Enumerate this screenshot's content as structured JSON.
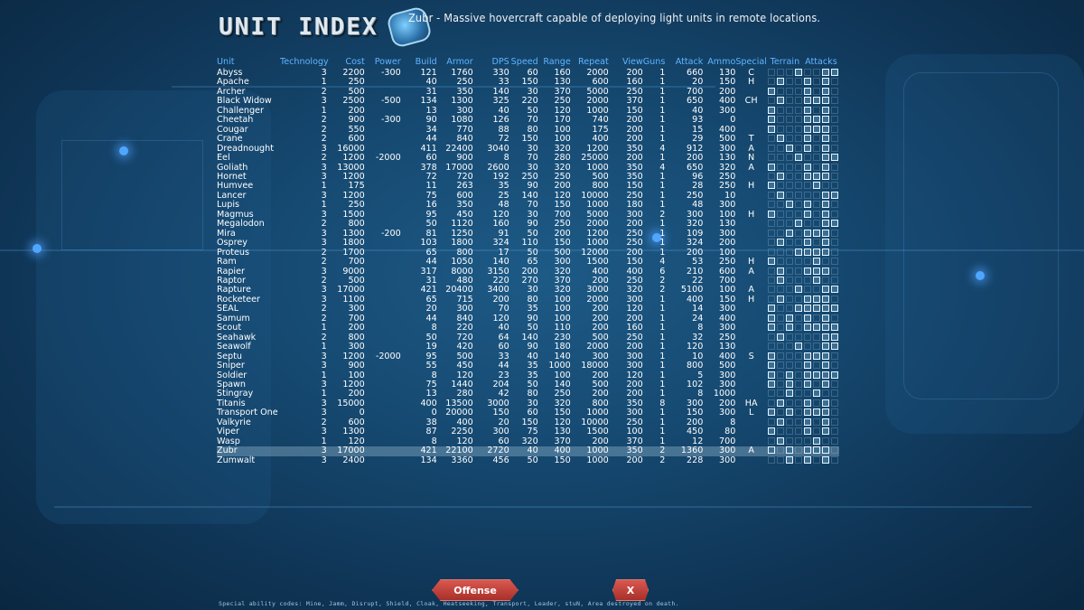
{
  "header": {
    "title": "UNIT INDEX",
    "description": "Zubr - Massive hovercraft capable of deploying light units in remote locations."
  },
  "columns": [
    "Unit",
    "Technology",
    "Cost",
    "Power",
    "Build",
    "Armor",
    "DPS",
    "Speed",
    "Range",
    "Repeat",
    "View",
    "Guns",
    "Attack",
    "Ammo",
    "Special",
    "Terrain",
    "Attacks"
  ],
  "selected_unit": "Zubr",
  "units": [
    {
      "name": "Abyss",
      "tech": "3",
      "cost": "2200",
      "power": "-300",
      "build": "121",
      "armor": "1760",
      "dps": "330",
      "speed": "60",
      "range": "160",
      "repeat": "2000",
      "view": "200",
      "guns": "1",
      "attack": "660",
      "ammo": "130",
      "special": "C",
      "icons": "00010011"
    },
    {
      "name": "Apache",
      "tech": "1",
      "cost": "250",
      "power": "",
      "build": "40",
      "armor": "250",
      "dps": "33",
      "speed": "150",
      "range": "130",
      "repeat": "600",
      "view": "160",
      "guns": "1",
      "attack": "20",
      "ammo": "150",
      "special": "H",
      "icons": "01001010"
    },
    {
      "name": "Archer",
      "tech": "2",
      "cost": "500",
      "power": "",
      "build": "31",
      "armor": "350",
      "dps": "140",
      "speed": "30",
      "range": "370",
      "repeat": "5000",
      "view": "250",
      "guns": "1",
      "attack": "700",
      "ammo": "200",
      "special": "",
      "icons": "10001010"
    },
    {
      "name": "Black Widow",
      "tech": "3",
      "cost": "2500",
      "power": "-500",
      "build": "134",
      "armor": "1300",
      "dps": "325",
      "speed": "220",
      "range": "250",
      "repeat": "2000",
      "view": "370",
      "guns": "1",
      "attack": "650",
      "ammo": "400",
      "special": "CH",
      "icons": "01001110"
    },
    {
      "name": "Challenger",
      "tech": "1",
      "cost": "200",
      "power": "",
      "build": "13",
      "armor": "300",
      "dps": "40",
      "speed": "50",
      "range": "120",
      "repeat": "1000",
      "view": "150",
      "guns": "1",
      "attack": "40",
      "ammo": "300",
      "special": "",
      "icons": "10001010"
    },
    {
      "name": "Cheetah",
      "tech": "2",
      "cost": "900",
      "power": "-300",
      "build": "90",
      "armor": "1080",
      "dps": "126",
      "speed": "70",
      "range": "170",
      "repeat": "740",
      "view": "200",
      "guns": "1",
      "attack": "93",
      "ammo": "0",
      "special": "",
      "icons": "10001110"
    },
    {
      "name": "Cougar",
      "tech": "2",
      "cost": "550",
      "power": "",
      "build": "34",
      "armor": "770",
      "dps": "88",
      "speed": "80",
      "range": "100",
      "repeat": "175",
      "view": "200",
      "guns": "1",
      "attack": "15",
      "ammo": "400",
      "special": "",
      "icons": "10001110"
    },
    {
      "name": "Crane",
      "tech": "2",
      "cost": "600",
      "power": "",
      "build": "44",
      "armor": "840",
      "dps": "72",
      "speed": "150",
      "range": "100",
      "repeat": "400",
      "view": "200",
      "guns": "1",
      "attack": "29",
      "ammo": "500",
      "special": "T",
      "icons": "01001010"
    },
    {
      "name": "Dreadnought",
      "tech": "3",
      "cost": "16000",
      "power": "",
      "build": "411",
      "armor": "22400",
      "dps": "3040",
      "speed": "30",
      "range": "320",
      "repeat": "1200",
      "view": "350",
      "guns": "4",
      "attack": "912",
      "ammo": "300",
      "special": "A",
      "icons": "00101010"
    },
    {
      "name": "Eel",
      "tech": "2",
      "cost": "1200",
      "power": "-2000",
      "build": "60",
      "armor": "900",
      "dps": "8",
      "speed": "70",
      "range": "280",
      "repeat": "25000",
      "view": "200",
      "guns": "1",
      "attack": "200",
      "ammo": "130",
      "special": "N",
      "icons": "00010011"
    },
    {
      "name": "Goliath",
      "tech": "3",
      "cost": "13000",
      "power": "",
      "build": "378",
      "armor": "17000",
      "dps": "2600",
      "speed": "30",
      "range": "320",
      "repeat": "1000",
      "view": "350",
      "guns": "4",
      "attack": "650",
      "ammo": "320",
      "special": "A",
      "icons": "10001010"
    },
    {
      "name": "Hornet",
      "tech": "3",
      "cost": "1200",
      "power": "",
      "build": "72",
      "armor": "720",
      "dps": "192",
      "speed": "250",
      "range": "250",
      "repeat": "500",
      "view": "350",
      "guns": "1",
      "attack": "96",
      "ammo": "250",
      "special": "",
      "icons": "01001110"
    },
    {
      "name": "Humvee",
      "tech": "1",
      "cost": "175",
      "power": "",
      "build": "11",
      "armor": "263",
      "dps": "35",
      "speed": "90",
      "range": "200",
      "repeat": "800",
      "view": "150",
      "guns": "1",
      "attack": "28",
      "ammo": "250",
      "special": "H",
      "icons": "10000100"
    },
    {
      "name": "Lancer",
      "tech": "3",
      "cost": "1200",
      "power": "",
      "build": "75",
      "armor": "600",
      "dps": "25",
      "speed": "140",
      "range": "120",
      "repeat": "10000",
      "view": "250",
      "guns": "1",
      "attack": "250",
      "ammo": "10",
      "special": "",
      "icons": "01000011"
    },
    {
      "name": "Lupis",
      "tech": "1",
      "cost": "250",
      "power": "",
      "build": "16",
      "armor": "350",
      "dps": "48",
      "speed": "70",
      "range": "150",
      "repeat": "1000",
      "view": "180",
      "guns": "1",
      "attack": "48",
      "ammo": "300",
      "special": "",
      "icons": "00101010"
    },
    {
      "name": "Magmus",
      "tech": "3",
      "cost": "1500",
      "power": "",
      "build": "95",
      "armor": "450",
      "dps": "120",
      "speed": "30",
      "range": "700",
      "repeat": "5000",
      "view": "300",
      "guns": "2",
      "attack": "300",
      "ammo": "100",
      "special": "H",
      "icons": "10001010"
    },
    {
      "name": "Megalodon",
      "tech": "2",
      "cost": "800",
      "power": "",
      "build": "50",
      "armor": "1120",
      "dps": "160",
      "speed": "90",
      "range": "250",
      "repeat": "2000",
      "view": "200",
      "guns": "1",
      "attack": "320",
      "ammo": "130",
      "special": "",
      "icons": "00010011"
    },
    {
      "name": "Mira",
      "tech": "3",
      "cost": "1300",
      "power": "-200",
      "build": "81",
      "armor": "1250",
      "dps": "91",
      "speed": "50",
      "range": "200",
      "repeat": "1200",
      "view": "250",
      "guns": "1",
      "attack": "109",
      "ammo": "300",
      "special": "",
      "icons": "00101110"
    },
    {
      "name": "Osprey",
      "tech": "3",
      "cost": "1800",
      "power": "",
      "build": "103",
      "armor": "1800",
      "dps": "324",
      "speed": "110",
      "range": "150",
      "repeat": "1000",
      "view": "250",
      "guns": "1",
      "attack": "324",
      "ammo": "200",
      "special": "",
      "icons": "01001010"
    },
    {
      "name": "Proteus",
      "tech": "2",
      "cost": "1700",
      "power": "",
      "build": "65",
      "armor": "800",
      "dps": "17",
      "speed": "50",
      "range": "500",
      "repeat": "12000",
      "view": "200",
      "guns": "1",
      "attack": "200",
      "ammo": "100",
      "special": "",
      "icons": "00011110"
    },
    {
      "name": "Ram",
      "tech": "2",
      "cost": "700",
      "power": "",
      "build": "44",
      "armor": "1050",
      "dps": "140",
      "speed": "65",
      "range": "300",
      "repeat": "1500",
      "view": "150",
      "guns": "4",
      "attack": "53",
      "ammo": "250",
      "special": "H",
      "icons": "10000100"
    },
    {
      "name": "Rapier",
      "tech": "3",
      "cost": "9000",
      "power": "",
      "build": "317",
      "armor": "8000",
      "dps": "3150",
      "speed": "200",
      "range": "320",
      "repeat": "400",
      "view": "400",
      "guns": "6",
      "attack": "210",
      "ammo": "600",
      "special": "A",
      "icons": "01001110"
    },
    {
      "name": "Raptor",
      "tech": "2",
      "cost": "500",
      "power": "",
      "build": "31",
      "armor": "480",
      "dps": "220",
      "speed": "270",
      "range": "370",
      "repeat": "200",
      "view": "250",
      "guns": "2",
      "attack": "22",
      "ammo": "700",
      "special": "",
      "icons": "01000100"
    },
    {
      "name": "Rapture",
      "tech": "3",
      "cost": "17000",
      "power": "",
      "build": "421",
      "armor": "20400",
      "dps": "3400",
      "speed": "30",
      "range": "320",
      "repeat": "3000",
      "view": "320",
      "guns": "2",
      "attack": "5100",
      "ammo": "100",
      "special": "A",
      "icons": "00010011"
    },
    {
      "name": "Rocketeer",
      "tech": "3",
      "cost": "1100",
      "power": "",
      "build": "65",
      "armor": "715",
      "dps": "200",
      "speed": "80",
      "range": "100",
      "repeat": "2000",
      "view": "300",
      "guns": "1",
      "attack": "400",
      "ammo": "150",
      "special": "H",
      "icons": "01001110"
    },
    {
      "name": "SEAL",
      "tech": "2",
      "cost": "300",
      "power": "",
      "build": "20",
      "armor": "300",
      "dps": "70",
      "speed": "35",
      "range": "100",
      "repeat": "200",
      "view": "120",
      "guns": "1",
      "attack": "14",
      "ammo": "300",
      "special": "",
      "icons": "10011111"
    },
    {
      "name": "Samum",
      "tech": "2",
      "cost": "700",
      "power": "",
      "build": "44",
      "armor": "840",
      "dps": "120",
      "speed": "90",
      "range": "100",
      "repeat": "200",
      "view": "200",
      "guns": "1",
      "attack": "24",
      "ammo": "400",
      "special": "",
      "icons": "10101010"
    },
    {
      "name": "Scout",
      "tech": "1",
      "cost": "200",
      "power": "",
      "build": "8",
      "armor": "220",
      "dps": "40",
      "speed": "50",
      "range": "110",
      "repeat": "200",
      "view": "160",
      "guns": "1",
      "attack": "8",
      "ammo": "300",
      "special": "",
      "icons": "10101111"
    },
    {
      "name": "Seahawk",
      "tech": "2",
      "cost": "800",
      "power": "",
      "build": "50",
      "armor": "720",
      "dps": "64",
      "speed": "140",
      "range": "230",
      "repeat": "500",
      "view": "250",
      "guns": "1",
      "attack": "32",
      "ammo": "250",
      "special": "",
      "icons": "01000011"
    },
    {
      "name": "Seawolf",
      "tech": "1",
      "cost": "300",
      "power": "",
      "build": "19",
      "armor": "420",
      "dps": "60",
      "speed": "90",
      "range": "180",
      "repeat": "2000",
      "view": "200",
      "guns": "1",
      "attack": "120",
      "ammo": "130",
      "special": "",
      "icons": "00010011"
    },
    {
      "name": "Septu",
      "tech": "3",
      "cost": "1200",
      "power": "-2000",
      "build": "95",
      "armor": "500",
      "dps": "33",
      "speed": "40",
      "range": "140",
      "repeat": "300",
      "view": "300",
      "guns": "1",
      "attack": "10",
      "ammo": "400",
      "special": "S",
      "icons": "10001110"
    },
    {
      "name": "Sniper",
      "tech": "3",
      "cost": "900",
      "power": "",
      "build": "55",
      "armor": "450",
      "dps": "44",
      "speed": "35",
      "range": "1000",
      "repeat": "18000",
      "view": "300",
      "guns": "1",
      "attack": "800",
      "ammo": "500",
      "special": "",
      "icons": "10001010"
    },
    {
      "name": "Soldier",
      "tech": "1",
      "cost": "100",
      "power": "",
      "build": "8",
      "armor": "120",
      "dps": "23",
      "speed": "35",
      "range": "100",
      "repeat": "200",
      "view": "120",
      "guns": "1",
      "attack": "5",
      "ammo": "300",
      "special": "",
      "icons": "10101111"
    },
    {
      "name": "Spawn",
      "tech": "3",
      "cost": "1200",
      "power": "",
      "build": "75",
      "armor": "1440",
      "dps": "204",
      "speed": "50",
      "range": "140",
      "repeat": "500",
      "view": "200",
      "guns": "1",
      "attack": "102",
      "ammo": "300",
      "special": "",
      "icons": "10101010"
    },
    {
      "name": "Stingray",
      "tech": "1",
      "cost": "200",
      "power": "",
      "build": "13",
      "armor": "280",
      "dps": "42",
      "speed": "80",
      "range": "250",
      "repeat": "200",
      "view": "200",
      "guns": "1",
      "attack": "8",
      "ammo": "1000",
      "special": "",
      "icons": "00100100"
    },
    {
      "name": "Titanis",
      "tech": "3",
      "cost": "15000",
      "power": "",
      "build": "400",
      "armor": "13500",
      "dps": "3000",
      "speed": "30",
      "range": "320",
      "repeat": "800",
      "view": "350",
      "guns": "8",
      "attack": "300",
      "ammo": "200",
      "special": "HA",
      "icons": "01001010"
    },
    {
      "name": "Transport One",
      "tech": "3",
      "cost": "0",
      "power": "",
      "build": "0",
      "armor": "20000",
      "dps": "150",
      "speed": "60",
      "range": "150",
      "repeat": "1000",
      "view": "300",
      "guns": "1",
      "attack": "150",
      "ammo": "300",
      "special": "L",
      "icons": "10101110"
    },
    {
      "name": "Valkyrie",
      "tech": "2",
      "cost": "600",
      "power": "",
      "build": "38",
      "armor": "400",
      "dps": "20",
      "speed": "150",
      "range": "120",
      "repeat": "10000",
      "view": "250",
      "guns": "1",
      "attack": "200",
      "ammo": "8",
      "special": "",
      "icons": "01001010"
    },
    {
      "name": "Viper",
      "tech": "3",
      "cost": "1300",
      "power": "",
      "build": "87",
      "armor": "2250",
      "dps": "300",
      "speed": "75",
      "range": "130",
      "repeat": "1500",
      "view": "100",
      "guns": "1",
      "attack": "450",
      "ammo": "80",
      "special": "",
      "icons": "10001010"
    },
    {
      "name": "Wasp",
      "tech": "1",
      "cost": "120",
      "power": "",
      "build": "8",
      "armor": "120",
      "dps": "60",
      "speed": "320",
      "range": "370",
      "repeat": "200",
      "view": "370",
      "guns": "1",
      "attack": "12",
      "ammo": "700",
      "special": "",
      "icons": "01000100"
    },
    {
      "name": "Zubr",
      "tech": "3",
      "cost": "17000",
      "power": "",
      "build": "421",
      "armor": "22100",
      "dps": "2720",
      "speed": "40",
      "range": "400",
      "repeat": "1000",
      "view": "350",
      "guns": "2",
      "attack": "1360",
      "ammo": "300",
      "special": "A",
      "icons": "10101110"
    },
    {
      "name": "Zumwalt",
      "tech": "3",
      "cost": "2400",
      "power": "",
      "build": "134",
      "armor": "3360",
      "dps": "456",
      "speed": "50",
      "range": "150",
      "repeat": "1000",
      "view": "200",
      "guns": "2",
      "attack": "228",
      "ammo": "300",
      "special": "",
      "icons": "00101010"
    }
  ],
  "buttons": {
    "offense": "Offense",
    "close": "X"
  },
  "footer": "Special ability codes: Mine, Jamm, Disrupt, Shield, Cloak, Heatseeking, Transport, Leader, stuN, Area destroyed on death."
}
